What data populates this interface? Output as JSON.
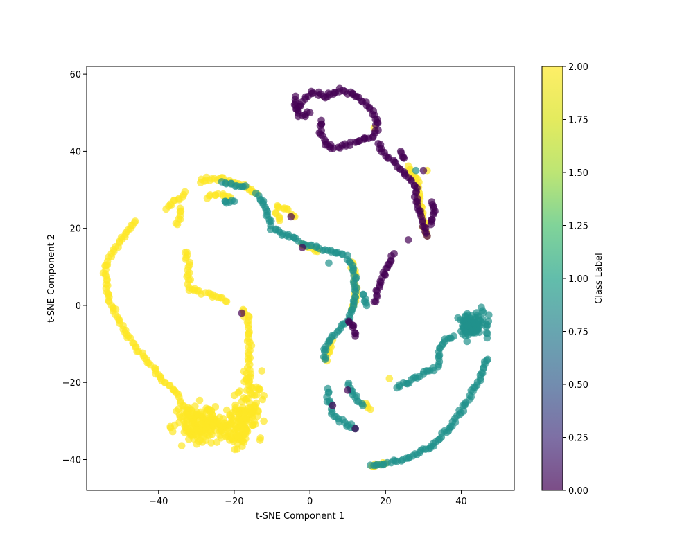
{
  "chart_data": {
    "type": "scatter",
    "title": "",
    "xlabel": "t-SNE Component 1",
    "ylabel": "t-SNE Component 2",
    "xlim": [
      -59,
      54
    ],
    "ylim": [
      -48,
      62
    ],
    "xticks": [
      -40,
      -20,
      0,
      20,
      40
    ],
    "yticks": [
      -40,
      -20,
      0,
      20,
      40,
      60
    ],
    "xtick_labels": [
      "−40",
      "−20",
      "0",
      "20",
      "40"
    ],
    "ytick_labels": [
      "−40",
      "−20",
      "0",
      "20",
      "40",
      "60"
    ],
    "grid": false,
    "colormap": "viridis",
    "marker_alpha": 0.7,
    "colorbar": {
      "label": "Class Label",
      "range": [
        0.0,
        2.0
      ],
      "ticks": [
        0.0,
        0.25,
        0.5,
        0.75,
        1.0,
        1.25,
        1.5,
        1.75,
        2.0
      ],
      "tick_labels": [
        "0.00",
        "0.25",
        "0.50",
        "0.75",
        "1.00",
        "1.25",
        "1.50",
        "1.75",
        "2.00"
      ]
    },
    "class_colors": {
      "0": "#440154",
      "1": "#21918c",
      "2": "#fde725"
    },
    "series": [
      {
        "class": 2,
        "paths": [
          [
            [
              -46,
              22
            ],
            [
              -49,
              18
            ],
            [
              -52,
              14
            ],
            [
              -54,
              10
            ],
            [
              -54,
              6
            ],
            [
              -53,
              2
            ],
            [
              -51,
              -3
            ],
            [
              -48,
              -8
            ],
            [
              -44,
              -13
            ],
            [
              -40,
              -18
            ],
            [
              -36,
              -22
            ],
            [
              -33,
              -26
            ],
            [
              -30,
              -29
            ]
          ],
          [
            [
              -29,
              32
            ],
            [
              -27,
              33
            ],
            [
              -24,
              33
            ],
            [
              -21,
              32
            ],
            [
              -17,
              31
            ],
            [
              -14,
              29
            ]
          ],
          [
            [
              -33,
              29
            ],
            [
              -36,
              27
            ],
            [
              -38,
              25
            ]
          ],
          [
            [
              -34,
              25
            ],
            [
              -35,
              21
            ]
          ],
          [
            [
              -33,
              14
            ],
            [
              -32,
              11
            ],
            [
              -32,
              8
            ],
            [
              -32,
              4
            ],
            [
              -30,
              4
            ],
            [
              -27,
              3
            ],
            [
              -24,
              2
            ],
            [
              -22,
              1
            ]
          ],
          [
            [
              -18,
              -1
            ],
            [
              -16,
              -4
            ],
            [
              -16,
              -9
            ],
            [
              -16,
              -14
            ],
            [
              -16,
              -18
            ],
            [
              -16,
              -22
            ]
          ],
          [
            [
              -27,
              28
            ],
            [
              -24,
              29
            ],
            [
              -21,
              28
            ]
          ],
          [
            [
              -9,
              26
            ],
            [
              -6,
              25
            ],
            [
              -4,
              23
            ]
          ],
          [
            [
              -2,
              16
            ],
            [
              0,
              15
            ],
            [
              2,
              14
            ]
          ],
          [
            [
              11,
              11
            ],
            [
              12,
              8
            ],
            [
              12,
              5
            ],
            [
              12,
              2
            ],
            [
              11,
              -1
            ]
          ],
          [
            [
              4,
              -14
            ],
            [
              5,
              -12
            ],
            [
              6,
              -9
            ]
          ],
          [
            [
              14,
              -25
            ],
            [
              16,
              -27
            ]
          ],
          [
            [
              21,
              -19
            ]
          ],
          [
            [
              16,
              -42
            ],
            [
              18,
              -41
            ],
            [
              20,
              -41
            ]
          ],
          [
            [
              26,
              36
            ],
            [
              28,
              33
            ],
            [
              29,
              30
            ],
            [
              29,
              27
            ],
            [
              30,
              24
            ],
            [
              30,
              21
            ],
            [
              31,
              18
            ]
          ],
          [
            [
              31,
              35
            ]
          ],
          [
            [
              17,
              46
            ]
          ],
          [
            [
              -9,
              24
            ],
            [
              -8,
              22
            ]
          ]
        ],
        "clusters": [
          {
            "center": [
              -29,
              -31
            ],
            "spread": [
              5,
              4
            ],
            "count": 150
          },
          {
            "center": [
              -19,
              -32
            ],
            "spread": [
              4,
              4
            ],
            "count": 100
          },
          {
            "center": [
              -16,
              -25
            ],
            "spread": [
              3,
              6
            ],
            "count": 60
          }
        ]
      },
      {
        "class": 1,
        "paths": [
          [
            [
              -23,
              32
            ],
            [
              -20,
              31
            ],
            [
              -17,
              31
            ]
          ],
          [
            [
              -14,
              29
            ],
            [
              -12,
              26
            ],
            [
              -11,
              23
            ],
            [
              -10,
              20
            ],
            [
              -8,
              19
            ],
            [
              -5,
              18
            ],
            [
              -2,
              16
            ],
            [
              2,
              15
            ],
            [
              6,
              14
            ],
            [
              9,
              13
            ],
            [
              11,
              11
            ],
            [
              12,
              8
            ],
            [
              12,
              5
            ],
            [
              12,
              2
            ],
            [
              11,
              -2
            ],
            [
              10,
              -4
            ],
            [
              8,
              -6
            ],
            [
              6,
              -8
            ],
            [
              4,
              -11
            ],
            [
              4,
              -14
            ]
          ],
          [
            [
              5,
              -22
            ],
            [
              5,
              -25
            ],
            [
              6,
              -28
            ],
            [
              8,
              -30
            ],
            [
              10,
              -31
            ],
            [
              12,
              -32
            ]
          ],
          [
            [
              10,
              -20
            ],
            [
              12,
              -24
            ],
            [
              14,
              -26
            ]
          ],
          [
            [
              16,
              -42
            ],
            [
              20,
              -41
            ],
            [
              24,
              -40
            ],
            [
              28,
              -39
            ],
            [
              31,
              -37
            ],
            [
              34,
              -35
            ],
            [
              37,
              -32
            ],
            [
              39,
              -29
            ],
            [
              41,
              -26
            ],
            [
              43,
              -22
            ],
            [
              45,
              -19
            ],
            [
              46,
              -16
            ],
            [
              47,
              -14
            ]
          ],
          [
            [
              23,
              -21
            ],
            [
              26,
              -20
            ],
            [
              29,
              -18
            ],
            [
              32,
              -17
            ],
            [
              34,
              -15
            ],
            [
              34,
              -12
            ],
            [
              36,
              -9
            ],
            [
              38,
              -8
            ]
          ],
          [
            [
              -23,
              27
            ],
            [
              -20,
              27
            ]
          ],
          [
            [
              14,
              3
            ],
            [
              15,
              0
            ]
          ],
          [
            [
              5,
              11
            ]
          ],
          [
            [
              28,
              35
            ]
          ]
        ],
        "clusters": [
          {
            "center": [
              43,
              -5
            ],
            "spread": [
              3,
              3
            ],
            "count": 90
          }
        ]
      },
      {
        "class": 0,
        "paths": [
          [
            [
              -3,
              51
            ],
            [
              -2,
              53
            ],
            [
              0,
              55
            ],
            [
              2,
              55
            ],
            [
              4,
              54
            ],
            [
              6,
              55
            ],
            [
              8,
              56
            ],
            [
              11,
              55
            ],
            [
              13,
              54
            ],
            [
              15,
              52
            ],
            [
              17,
              50
            ],
            [
              18,
              47
            ],
            [
              17,
              44
            ],
            [
              14,
              43
            ],
            [
              11,
              42
            ],
            [
              8,
              41
            ],
            [
              6,
              41
            ],
            [
              4,
              42
            ],
            [
              3,
              45
            ],
            [
              3,
              48
            ]
          ],
          [
            [
              -4,
              54
            ],
            [
              -3,
              49
            ],
            [
              0,
              50
            ]
          ],
          [
            [
              18,
              42
            ],
            [
              20,
              39
            ],
            [
              22,
              37
            ],
            [
              24,
              35
            ],
            [
              26,
              33
            ],
            [
              28,
              31
            ],
            [
              28,
              27
            ],
            [
              29,
              24
            ],
            [
              30,
              21
            ],
            [
              31,
              18
            ]
          ],
          [
            [
              25,
              38
            ],
            [
              24,
              40
            ]
          ],
          [
            [
              32,
              27
            ],
            [
              33,
              24
            ],
            [
              32,
              21
            ]
          ],
          [
            [
              22,
              13
            ],
            [
              21,
              11
            ],
            [
              19,
              7
            ],
            [
              18,
              4
            ],
            [
              17,
              1
            ]
          ],
          [
            [
              10,
              -4
            ],
            [
              11,
              -5
            ],
            [
              12,
              -8
            ]
          ],
          [
            [
              6,
              -26
            ]
          ],
          [
            [
              10,
              -22
            ]
          ],
          [
            [
              12,
              -32
            ]
          ],
          [
            [
              -2,
              15
            ]
          ],
          [
            [
              -5,
              23
            ]
          ],
          [
            [
              26,
              17
            ]
          ],
          [
            [
              30,
              35
            ]
          ],
          [
            [
              -18,
              -2
            ]
          ]
        ],
        "clusters": []
      }
    ]
  }
}
